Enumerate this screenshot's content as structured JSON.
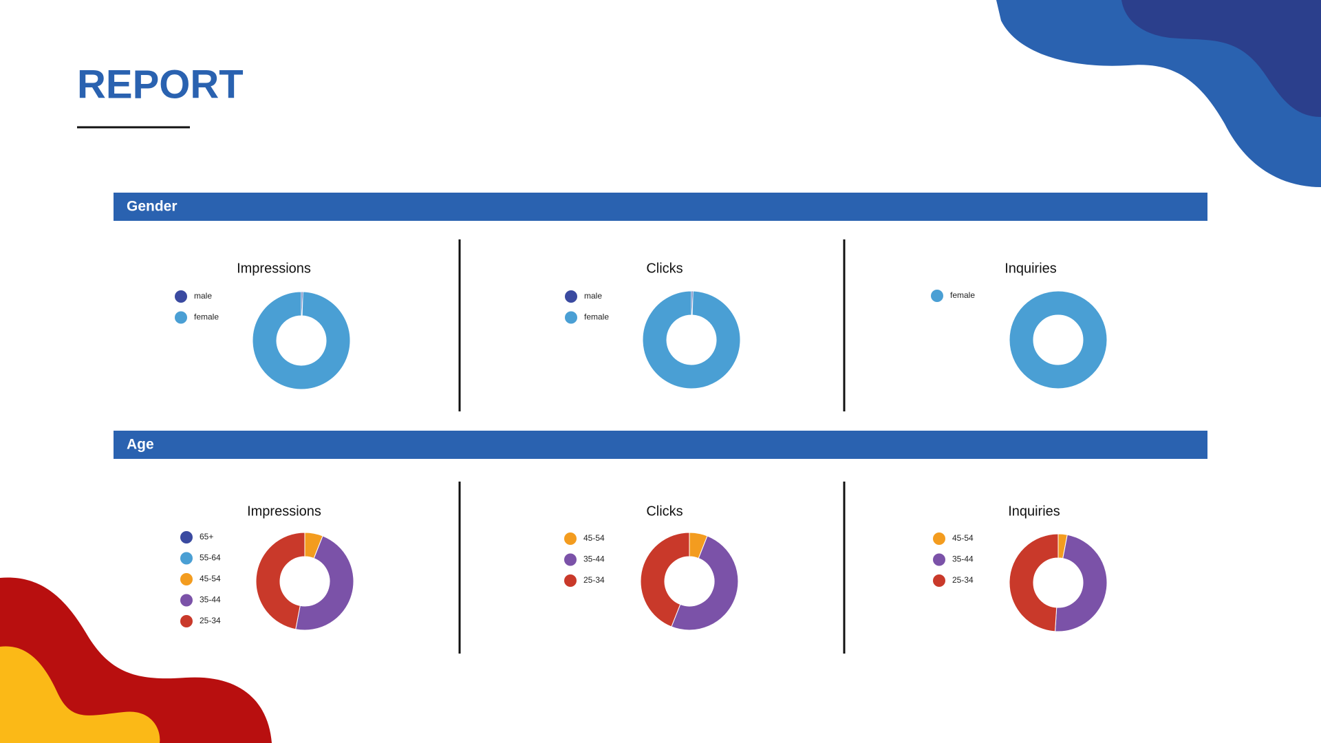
{
  "title": "REPORT",
  "sections": [
    "Gender",
    "Age"
  ],
  "chart_data": [
    {
      "type": "donut",
      "title": "Impressions",
      "categories": [
        "male",
        "female"
      ],
      "values": [
        0.5,
        99.5
      ],
      "colors": [
        "#3a4aa0",
        "#4a9fd4"
      ]
    },
    {
      "type": "donut",
      "title": "Clicks",
      "categories": [
        "male",
        "female"
      ],
      "values": [
        0.5,
        99.5
      ],
      "colors": [
        "#3a4aa0",
        "#4a9fd4"
      ]
    },
    {
      "type": "donut",
      "title": "Inquiries",
      "categories": [
        "female"
      ],
      "values": [
        100
      ],
      "colors": [
        "#4a9fd4"
      ]
    },
    {
      "type": "donut",
      "title": "Impressions",
      "categories": [
        "65+",
        "55-64",
        "45-54",
        "35-44",
        "25-34"
      ],
      "values": [
        0,
        0,
        6,
        47,
        47
      ],
      "colors": [
        "#3a4aa0",
        "#4a9fd4",
        "#f39c1f",
        "#7b52a8",
        "#c9392a"
      ]
    },
    {
      "type": "donut",
      "title": "Clicks",
      "categories": [
        "45-54",
        "35-44",
        "25-34"
      ],
      "values": [
        6,
        50,
        44
      ],
      "colors": [
        "#f39c1f",
        "#7b52a8",
        "#c9392a"
      ]
    },
    {
      "type": "donut",
      "title": "Inquiries",
      "categories": [
        "45-54",
        "35-44",
        "25-34"
      ],
      "values": [
        3,
        48,
        49
      ],
      "colors": [
        "#f39c1f",
        "#7b52a8",
        "#c9392a"
      ]
    }
  ]
}
